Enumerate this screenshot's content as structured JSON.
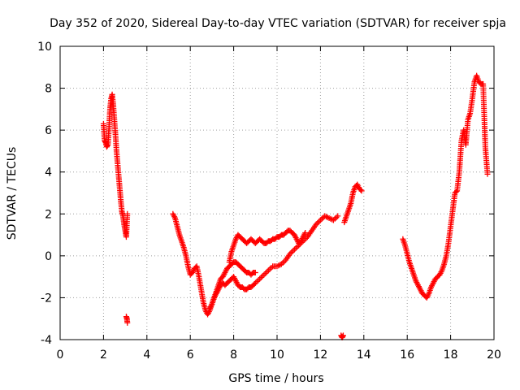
{
  "chart_data": {
    "type": "scatter",
    "title": "Day 352 of 2020, Sidereal Day-to-day VTEC variation (SDTVAR) for receiver spja",
    "xlabel": "GPS time / hours",
    "ylabel": "SDTVAR / TECUs",
    "xlim": [
      0,
      20
    ],
    "ylim": [
      -4,
      10
    ],
    "xticks": [
      "0",
      "2",
      "4",
      "6",
      "8",
      "10",
      "12",
      "14",
      "16",
      "18",
      "20"
    ],
    "yticks": [
      "-4",
      "-2",
      "0",
      "2",
      "4",
      "6",
      "8",
      "10"
    ],
    "grid": true,
    "marker": "+",
    "color": "#ff0000",
    "series": [
      {
        "name": "seg1",
        "x": [
          2.0,
          2.05,
          2.1,
          2.15,
          2.2,
          2.25,
          2.3,
          2.35,
          2.4,
          2.45,
          2.5,
          2.55,
          2.6,
          2.65,
          2.7,
          2.75,
          2.8,
          2.85,
          2.9,
          2.95,
          3.0,
          3.05,
          3.1
        ],
        "y": [
          6.3,
          5.5,
          5.4,
          5.2,
          5.3,
          6.0,
          7.0,
          7.5,
          7.7,
          7.2,
          6.5,
          5.8,
          5.0,
          4.4,
          3.8,
          3.2,
          2.6,
          2.1,
          1.9,
          1.5,
          1.2,
          0.9,
          2.0
        ]
      },
      {
        "name": "seg2",
        "x": [
          3.05,
          3.08,
          3.1
        ],
        "y": [
          -2.9,
          -3.0,
          -3.2
        ]
      },
      {
        "name": "seg3",
        "x": [
          5.2,
          5.3,
          5.4,
          5.5,
          5.6,
          5.7,
          5.8,
          5.9,
          6.0,
          6.1,
          6.2,
          6.3,
          6.4,
          6.5,
          6.6,
          6.7,
          6.8,
          6.9,
          7.0,
          7.1,
          7.2,
          7.3,
          7.4,
          7.5,
          7.6,
          7.7,
          7.8,
          7.9,
          8.0,
          8.1,
          8.2,
          8.3,
          8.4,
          8.5,
          8.6,
          8.7,
          8.8,
          8.9,
          9.0,
          9.2,
          9.4,
          9.6,
          9.8,
          10.0,
          10.2,
          10.4,
          10.6,
          10.8,
          11.0,
          11.2,
          11.4,
          11.6,
          11.8,
          12.0,
          12.2,
          12.4,
          12.6,
          12.8
        ],
        "y": [
          2.0,
          1.8,
          1.4,
          1.0,
          0.7,
          0.4,
          0.0,
          -0.5,
          -0.9,
          -0.8,
          -0.6,
          -0.5,
          -1.0,
          -1.6,
          -2.2,
          -2.6,
          -2.8,
          -2.6,
          -2.3,
          -2.0,
          -1.8,
          -1.6,
          -1.4,
          -1.3,
          -1.4,
          -1.3,
          -1.2,
          -1.1,
          -1.0,
          -1.2,
          -1.4,
          -1.5,
          -1.5,
          -1.6,
          -1.6,
          -1.5,
          -1.5,
          -1.4,
          -1.3,
          -1.1,
          -0.9,
          -0.7,
          -0.5,
          -0.5,
          -0.4,
          -0.2,
          0.1,
          0.3,
          0.5,
          0.7,
          0.9,
          1.2,
          1.5,
          1.7,
          1.9,
          1.8,
          1.7,
          1.9
        ]
      },
      {
        "name": "seg4",
        "x": [
          6.9,
          7.0,
          7.1,
          7.2,
          7.3,
          7.4,
          7.5,
          7.6,
          7.7,
          7.8,
          7.9,
          8.0,
          8.1,
          8.2,
          8.3,
          8.4,
          8.5,
          8.6,
          8.7,
          8.8,
          8.9,
          9.0
        ],
        "y": [
          -2.5,
          -2.3,
          -2.0,
          -1.7,
          -1.4,
          -1.1,
          -1.0,
          -0.8,
          -0.6,
          -0.5,
          -0.4,
          -0.3,
          -0.3,
          -0.4,
          -0.5,
          -0.6,
          -0.7,
          -0.8,
          -0.8,
          -0.9,
          -0.8,
          -0.8
        ]
      },
      {
        "name": "seg5",
        "x": [
          7.8,
          7.9,
          8.0,
          8.1,
          8.2,
          8.3,
          8.4,
          8.5,
          8.6,
          8.7,
          8.8,
          8.9,
          9.0,
          9.1,
          9.2,
          9.3,
          9.4,
          9.5,
          9.6,
          9.7,
          9.8,
          9.9,
          10.0,
          10.1,
          10.2,
          10.3,
          10.4,
          10.5,
          10.6,
          10.7,
          10.8,
          10.9,
          11.0,
          11.1,
          11.2,
          11.3
        ],
        "y": [
          -0.3,
          0.2,
          0.5,
          0.8,
          1.0,
          0.9,
          0.8,
          0.7,
          0.6,
          0.7,
          0.8,
          0.7,
          0.6,
          0.7,
          0.8,
          0.7,
          0.6,
          0.6,
          0.7,
          0.7,
          0.8,
          0.8,
          0.9,
          0.9,
          1.0,
          1.0,
          1.1,
          1.2,
          1.2,
          1.1,
          1.0,
          0.8,
          0.6,
          0.7,
          0.9,
          1.1
        ]
      },
      {
        "name": "seg6",
        "x": [
          12.95,
          13.0,
          13.05
        ],
        "y": [
          -3.8,
          -3.9,
          -3.8
        ]
      },
      {
        "name": "seg7",
        "x": [
          13.1,
          13.2,
          13.3,
          13.4,
          13.5,
          13.6,
          13.7,
          13.8,
          13.9
        ],
        "y": [
          1.6,
          1.9,
          2.2,
          2.5,
          3.0,
          3.3,
          3.4,
          3.2,
          3.1
        ]
      },
      {
        "name": "seg8",
        "x": [
          15.8,
          15.9,
          16.0,
          16.1,
          16.2,
          16.3,
          16.4,
          16.5,
          16.6,
          16.7,
          16.8,
          16.9,
          17.0,
          17.1,
          17.2,
          17.3,
          17.4,
          17.5,
          17.6,
          17.7,
          17.8,
          17.9,
          18.0,
          18.1,
          18.2,
          18.3,
          18.4,
          18.5,
          18.6,
          18.7,
          18.8,
          18.9,
          19.0,
          19.1,
          19.2,
          19.3,
          19.4,
          19.5,
          19.6,
          19.7
        ],
        "y": [
          0.8,
          0.5,
          0.1,
          -0.3,
          -0.6,
          -0.9,
          -1.2,
          -1.4,
          -1.6,
          -1.8,
          -1.9,
          -2.0,
          -1.8,
          -1.5,
          -1.3,
          -1.1,
          -1.0,
          -0.9,
          -0.7,
          -0.4,
          0.0,
          0.6,
          1.4,
          2.2,
          3.0,
          3.1,
          4.0,
          5.5,
          6.0,
          5.3,
          6.5,
          6.8,
          7.5,
          8.3,
          8.6,
          8.3,
          8.2,
          8.2,
          5.2,
          3.9
        ]
      }
    ]
  }
}
